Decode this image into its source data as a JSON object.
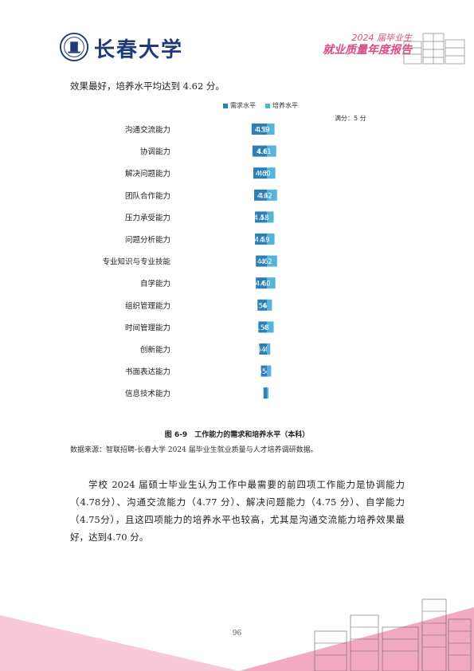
{
  "header": {
    "university_name": "长春大学",
    "report_line1": "2024 届毕业生",
    "report_line2": "就业质量年度报告"
  },
  "intro_text": "效果最好，培养水平均达到 4.62 分。",
  "chart_data": {
    "type": "bar",
    "orientation": "horizontal",
    "legend_position": "top-center",
    "unit_label": "满分：5 分",
    "categories": [
      "沟通交流能力",
      "协调能力",
      "解决问题能力",
      "团队合作能力",
      "压力承受能力",
      "问题分析能力",
      "专业知识与专业技能",
      "自学能力",
      "组织管理能力",
      "时间管理能力",
      "创新能力",
      "书面表达能力",
      "信息技术能力"
    ],
    "series": [
      {
        "name": "需求水平",
        "color": "#2e7fb8",
        "values": [
          4.68,
          4.67,
          4.66,
          4.65,
          4.64,
          4.64,
          4.63,
          4.63,
          4.61,
          4.6,
          4.59,
          4.57,
          4.54
        ]
      },
      {
        "name": "培养水平",
        "color": "#55b4dc",
        "values": [
          4.59,
          4.61,
          4.6,
          4.62,
          4.58,
          4.59,
          4.62,
          4.6,
          4.56,
          4.58,
          4.54,
          4.55,
          4.52
        ]
      }
    ]
  },
  "caption": "图 6-9　工作能力的需求和培养水平（本科）",
  "source": "数据来源：智联招聘-长春大学 2024 届毕业生就业质量与人才培养调研数据。",
  "paragraph": "学校 2024 届硕士毕业生认为工作中最需要的前四项工作能力是协调能力（4.78分）、沟通交流能力（4.77 分）、解决问题能力（4.75 分）、自学能力（4.75分），且这四项能力的培养水平也较高，尤其是沟通交流能力培养效果最好，达到4.70 分。",
  "page_number": "96"
}
